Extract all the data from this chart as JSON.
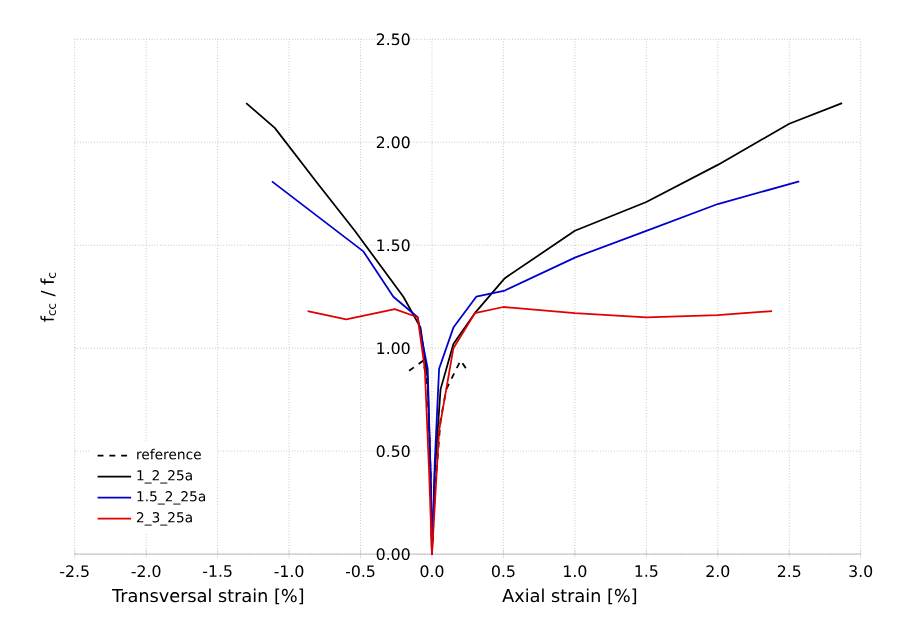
{
  "chart_data": {
    "type": "line",
    "ylabel": "f$_{cc}$ / f$_{c}$",
    "xlabel": "Axial strain [%]",
    "annotations": [
      "Transversal strain [%]"
    ],
    "xlim": [
      -2.5,
      3.0
    ],
    "ylim": [
      0,
      2.5
    ],
    "xticks": [
      {
        "value": -2.5,
        "label": "-2.5"
      },
      {
        "value": -2.0,
        "label": "-2.0"
      },
      {
        "value": -1.5,
        "label": "-1.5"
      },
      {
        "value": -1.0,
        "label": "-1.0"
      },
      {
        "value": -0.5,
        "label": "-0.5"
      },
      {
        "value": 0,
        "label": "0.0"
      },
      {
        "value": 0.5,
        "label": "0.5"
      },
      {
        "value": 1.0,
        "label": "1.0"
      },
      {
        "value": 1.5,
        "label": "1.5"
      },
      {
        "value": 2.0,
        "label": "2.0"
      },
      {
        "value": 2.5,
        "label": "2.5"
      },
      {
        "value": 3.0,
        "label": "3.0"
      }
    ],
    "yticks": [
      {
        "value": 0,
        "label": "0.00"
      },
      {
        "value": 0.5,
        "label": "0.50"
      },
      {
        "value": 1.0,
        "label": "1.00"
      },
      {
        "value": 1.5,
        "label": "1.50"
      },
      {
        "value": 2.0,
        "label": "2.00"
      },
      {
        "value": 2.5,
        "label": "2.50"
      }
    ],
    "grid": true,
    "legend": "bottom left",
    "marker": "none",
    "series": [
      {
        "name": "reference",
        "color": "#000000",
        "line_style": "dashed",
        "x": [
          -0.16,
          -0.06,
          -0.03,
          -0.01,
          0,
          0.02,
          0.06,
          0.1,
          0.2,
          0.24
        ],
        "values": [
          0.89,
          0.94,
          0.8,
          0.4,
          0,
          0.3,
          0.65,
          0.8,
          0.94,
          0.9
        ]
      },
      {
        "name": "1_2_25a",
        "color": "#000000",
        "line_style": "solid",
        "x": [
          -1.3,
          -1.1,
          -0.8,
          -0.54,
          -0.2,
          -0.08,
          -0.03,
          -0.01,
          0,
          0.02,
          0.06,
          0.15,
          0.3,
          0.51,
          1.0,
          1.5,
          2.0,
          2.5,
          2.87
        ],
        "values": [
          2.19,
          2.07,
          1.8,
          1.57,
          1.25,
          1.1,
          0.85,
          0.4,
          0,
          0.4,
          0.8,
          1.02,
          1.17,
          1.34,
          1.57,
          1.71,
          1.89,
          2.09,
          2.19
        ]
      },
      {
        "name": "1.5_2_25a",
        "color": "#0000cc",
        "line_style": "solid",
        "x": [
          -1.12,
          -0.8,
          -0.48,
          -0.27,
          -0.1,
          -0.03,
          -0.01,
          0,
          0.02,
          0.05,
          0.15,
          0.31,
          0.51,
          1.0,
          1.5,
          2.0,
          2.57
        ],
        "values": [
          1.81,
          1.64,
          1.47,
          1.25,
          1.15,
          0.9,
          0.4,
          0,
          0.45,
          0.9,
          1.1,
          1.25,
          1.28,
          1.44,
          1.57,
          1.7,
          1.81
        ]
      },
      {
        "name": "2_3_25a",
        "color": "#e00000",
        "line_style": "solid",
        "x": [
          -0.87,
          -0.6,
          -0.26,
          -0.1,
          -0.05,
          -0.02,
          0,
          0.05,
          0.15,
          0.3,
          0.5,
          1.0,
          1.5,
          2.0,
          2.38
        ],
        "values": [
          1.18,
          1.14,
          1.19,
          1.15,
          0.9,
          0.4,
          0,
          0.6,
          1.0,
          1.17,
          1.2,
          1.17,
          1.15,
          1.16,
          1.18
        ]
      }
    ]
  }
}
